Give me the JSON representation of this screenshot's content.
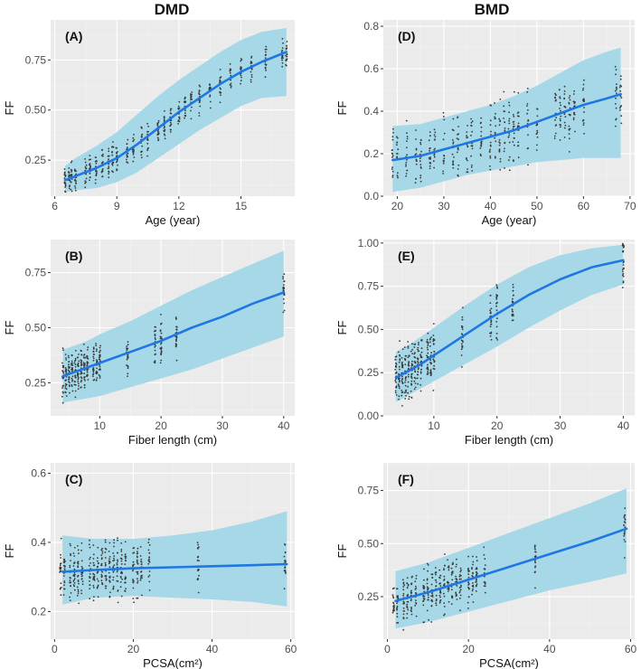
{
  "figure": {
    "column_titles": [
      "DMD",
      "BMD"
    ],
    "colors": {
      "panel_bg": "#ebebeb",
      "grid_major": "#ffffff",
      "grid_minor": "#f4f4f4",
      "ribbon": "#a6d8e7",
      "line": "#1f77e4",
      "points": "#3a3a3a"
    }
  },
  "chart_data": [
    {
      "id": "A",
      "label": "(A)",
      "column": "DMD",
      "type": "scatter",
      "xlabel": "Age (year)",
      "ylabel": "FF",
      "xlim": [
        5.8,
        17.6
      ],
      "ylim": [
        0.07,
        0.95
      ],
      "xticks": [
        6,
        9,
        12,
        15
      ],
      "xtick_labels": [
        "6",
        "9",
        "12",
        "15"
      ],
      "yticks": [
        0.25,
        0.5,
        0.75
      ],
      "ytick_labels": [
        "0.25",
        "0.50",
        "0.75"
      ],
      "fit": {
        "x": [
          6.5,
          7,
          8,
          9,
          10,
          11,
          12,
          13,
          14,
          15,
          16,
          17.2
        ],
        "y": [
          0.15,
          0.17,
          0.21,
          0.26,
          0.33,
          0.41,
          0.49,
          0.56,
          0.63,
          0.69,
          0.74,
          0.79
        ],
        "lower": [
          0.09,
          0.1,
          0.11,
          0.14,
          0.19,
          0.26,
          0.33,
          0.4,
          0.46,
          0.52,
          0.56,
          0.57
        ],
        "upper": [
          0.22,
          0.26,
          0.32,
          0.39,
          0.48,
          0.57,
          0.65,
          0.72,
          0.79,
          0.85,
          0.89,
          0.91
        ]
      },
      "scatter": {
        "x_groups": [
          6.5,
          6.7,
          6.8,
          7.0,
          7.5,
          7.7,
          8.0,
          8.3,
          8.6,
          8.8,
          9.0,
          9.5,
          9.8,
          10.2,
          10.5,
          11.0,
          11.3,
          11.6,
          12.0,
          12.3,
          12.6,
          13.0,
          13.5,
          14.0,
          14.5,
          15.0,
          15.5,
          16.2,
          17.0,
          17.2
        ],
        "points_per_group": 18,
        "spread": 0.07
      }
    },
    {
      "id": "D",
      "label": "(D)",
      "column": "BMD",
      "type": "scatter",
      "xlabel": "Age (year)",
      "ylabel": "FF",
      "xlim": [
        17,
        71
      ],
      "ylim": [
        0,
        0.83
      ],
      "xticks": [
        20,
        30,
        40,
        50,
        60,
        70
      ],
      "xtick_labels": [
        "20",
        "30",
        "40",
        "50",
        "60",
        "70"
      ],
      "yticks": [
        0,
        0.2,
        0.4,
        0.6,
        0.8
      ],
      "ytick_labels": [
        "0.0",
        "0.2",
        "0.4",
        "0.6",
        "0.8"
      ],
      "fit": {
        "x": [
          19,
          25,
          30,
          35,
          40,
          45,
          50,
          55,
          60,
          65,
          68
        ],
        "y": [
          0.17,
          0.19,
          0.22,
          0.25,
          0.28,
          0.31,
          0.35,
          0.39,
          0.43,
          0.46,
          0.48
        ],
        "lower": [
          0.02,
          0.04,
          0.07,
          0.1,
          0.12,
          0.14,
          0.16,
          0.17,
          0.18,
          0.18,
          0.18
        ],
        "upper": [
          0.33,
          0.34,
          0.37,
          0.4,
          0.43,
          0.47,
          0.52,
          0.58,
          0.64,
          0.68,
          0.7
        ]
      },
      "scatter": {
        "x_groups": [
          19,
          20,
          22,
          24,
          25,
          27,
          28,
          30,
          32,
          33,
          35,
          36,
          38,
          40,
          41,
          42,
          43,
          44,
          45,
          46,
          48,
          50,
          54,
          55,
          56,
          57,
          58,
          60,
          67,
          68
        ],
        "points_per_group": 16,
        "spread": 0.13
      }
    },
    {
      "id": "B",
      "label": "(B)",
      "column": "DMD",
      "type": "scatter",
      "xlabel": "Fiber length (cm)",
      "ylabel": "FF",
      "xlim": [
        2,
        41.8
      ],
      "ylim": [
        0.1,
        0.9
      ],
      "xticks": [
        10,
        20,
        30,
        40
      ],
      "xtick_labels": [
        "10",
        "20",
        "30",
        "40"
      ],
      "yticks": [
        0.25,
        0.5,
        0.75
      ],
      "ytick_labels": [
        "0.25",
        "0.50",
        "0.75"
      ],
      "fit": {
        "x": [
          4,
          6,
          8,
          10,
          15,
          20,
          25,
          30,
          35,
          40
        ],
        "y": [
          0.28,
          0.3,
          0.32,
          0.34,
          0.39,
          0.44,
          0.5,
          0.55,
          0.61,
          0.66
        ],
        "lower": [
          0.16,
          0.17,
          0.18,
          0.19,
          0.23,
          0.27,
          0.31,
          0.36,
          0.41,
          0.46
        ],
        "upper": [
          0.4,
          0.42,
          0.44,
          0.47,
          0.53,
          0.6,
          0.67,
          0.73,
          0.79,
          0.85
        ]
      },
      "scatter": {
        "x_groups": [
          4,
          4.5,
          5,
          5.5,
          6,
          6.5,
          7,
          7.5,
          8,
          9,
          9.5,
          10,
          14.5,
          19,
          20,
          22.5,
          40
        ],
        "points_per_group": 24,
        "spread": 0.09
      }
    },
    {
      "id": "E",
      "label": "(E)",
      "column": "BMD",
      "type": "scatter",
      "xlabel": "Fiber length (cm)",
      "ylabel": "FF",
      "xlim": [
        2,
        41.8
      ],
      "ylim": [
        0,
        1.02
      ],
      "xticks": [
        10,
        20,
        30,
        40
      ],
      "xtick_labels": [
        "10",
        "20",
        "30",
        "40"
      ],
      "yticks": [
        0,
        0.25,
        0.5,
        0.75,
        1
      ],
      "ytick_labels": [
        "0.00",
        "0.25",
        "0.50",
        "0.75",
        "1.00"
      ],
      "fit": {
        "x": [
          4,
          6,
          8,
          10,
          15,
          20,
          25,
          30,
          35,
          40
        ],
        "y": [
          0.22,
          0.26,
          0.3,
          0.35,
          0.47,
          0.59,
          0.7,
          0.79,
          0.86,
          0.9
        ],
        "lower": [
          0.08,
          0.12,
          0.16,
          0.2,
          0.3,
          0.4,
          0.51,
          0.61,
          0.7,
          0.76
        ],
        "upper": [
          0.37,
          0.41,
          0.46,
          0.51,
          0.64,
          0.76,
          0.86,
          0.93,
          0.97,
          0.99
        ]
      },
      "scatter": {
        "x_groups": [
          4,
          4.5,
          5,
          5.5,
          6,
          6.5,
          7,
          7.5,
          8,
          9,
          9.5,
          10,
          14.5,
          19,
          20,
          22.5,
          40
        ],
        "points_per_group": 24,
        "spread": 0.14
      }
    },
    {
      "id": "C",
      "label": "(C)",
      "column": "DMD",
      "type": "scatter",
      "xlabel": "PCSA(cm²)",
      "ylabel": "FF",
      "xlim": [
        -1,
        61
      ],
      "ylim": [
        0.12,
        0.63
      ],
      "xticks": [
        0,
        20,
        40,
        60
      ],
      "xtick_labels": [
        "0",
        "20",
        "40",
        "60"
      ],
      "yticks": [
        0.2,
        0.4,
        0.6
      ],
      "ytick_labels": [
        "0.2",
        "0.4",
        "0.6"
      ],
      "fit": {
        "x": [
          2,
          10,
          20,
          30,
          40,
          50,
          59
        ],
        "y": [
          0.315,
          0.32,
          0.325,
          0.328,
          0.331,
          0.334,
          0.337
        ],
        "lower": [
          0.22,
          0.24,
          0.245,
          0.24,
          0.235,
          0.228,
          0.215
        ],
        "upper": [
          0.42,
          0.41,
          0.41,
          0.42,
          0.435,
          0.46,
          0.49
        ]
      },
      "scatter": {
        "x_groups": [
          1.5,
          2.5,
          4,
          5,
          6,
          7,
          9,
          10,
          11,
          12,
          13,
          14,
          15,
          16,
          17,
          18,
          20,
          21,
          22,
          24,
          36.5,
          58.5
        ],
        "points_per_group": 20,
        "spread": 0.075
      }
    },
    {
      "id": "F",
      "label": "(F)",
      "column": "BMD",
      "type": "scatter",
      "xlabel": "PCSA(cm²)",
      "ylabel": "FF",
      "xlim": [
        -1,
        61
      ],
      "ylim": [
        0.05,
        0.88
      ],
      "xticks": [
        0,
        20,
        40,
        60
      ],
      "xtick_labels": [
        "0",
        "20",
        "40",
        "60"
      ],
      "yticks": [
        0.25,
        0.5,
        0.75
      ],
      "ytick_labels": [
        "0.25",
        "0.50",
        "0.75"
      ],
      "fit": {
        "x": [
          2,
          10,
          20,
          30,
          40,
          50,
          59
        ],
        "y": [
          0.23,
          0.27,
          0.33,
          0.39,
          0.45,
          0.51,
          0.57
        ],
        "lower": [
          0.1,
          0.13,
          0.18,
          0.23,
          0.28,
          0.32,
          0.36
        ],
        "upper": [
          0.37,
          0.41,
          0.48,
          0.55,
          0.62,
          0.69,
          0.76
        ]
      },
      "scatter": {
        "x_groups": [
          1.5,
          2.5,
          4,
          5,
          6,
          7,
          9,
          10,
          11,
          12,
          13,
          14,
          15,
          16,
          17,
          18,
          20,
          21,
          22,
          24,
          36.5,
          58.5
        ],
        "points_per_group": 20,
        "spread": 0.11
      }
    }
  ]
}
